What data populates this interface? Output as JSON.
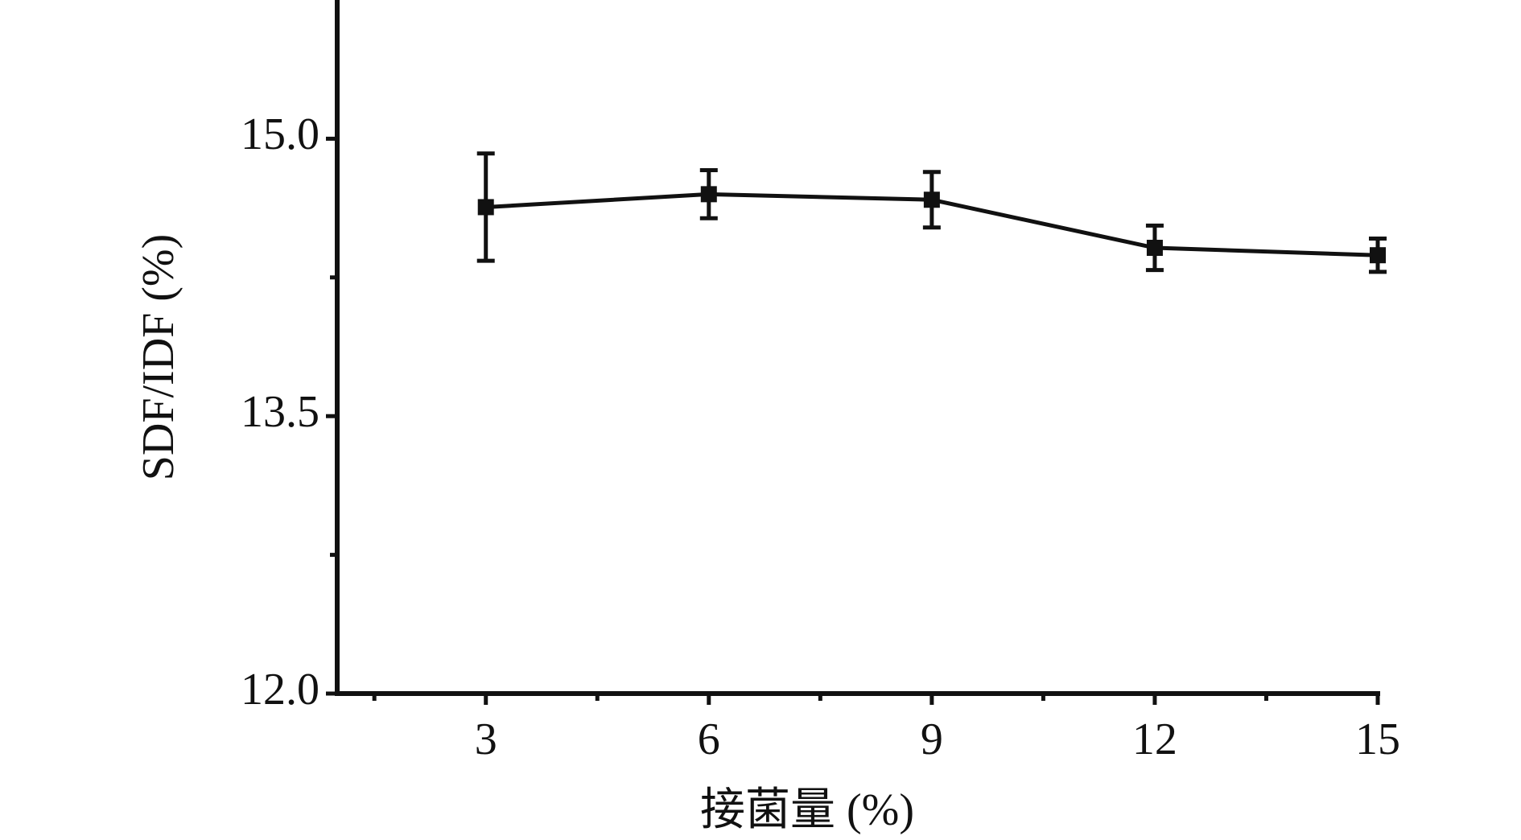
{
  "chart_data": {
    "type": "line",
    "xlabel": "接菌量 (%)",
    "ylabel": "SDF/IDF (%)",
    "x": [
      3,
      6,
      9,
      12,
      15
    ],
    "series": [
      {
        "color": "#111111",
        "values": [
          14.63,
          14.7,
          14.67,
          14.41,
          14.37
        ],
        "errors": [
          0.29,
          0.13,
          0.15,
          0.12,
          0.09
        ]
      }
    ],
    "xlim": [
      1,
      15
    ],
    "xticks": [
      3,
      6,
      9,
      12,
      15
    ],
    "xminor": [
      1.5,
      4.5,
      7.5,
      10.5,
      13.5
    ],
    "ylim": [
      12,
      15.75
    ],
    "yticks": [
      {
        "value": 12,
        "label": "12.0"
      },
      {
        "value": 13.5,
        "label": "13.5"
      },
      {
        "value": 15,
        "label": "15.0"
      }
    ],
    "yminor": [
      12.75,
      14.25
    ],
    "grid": false
  }
}
